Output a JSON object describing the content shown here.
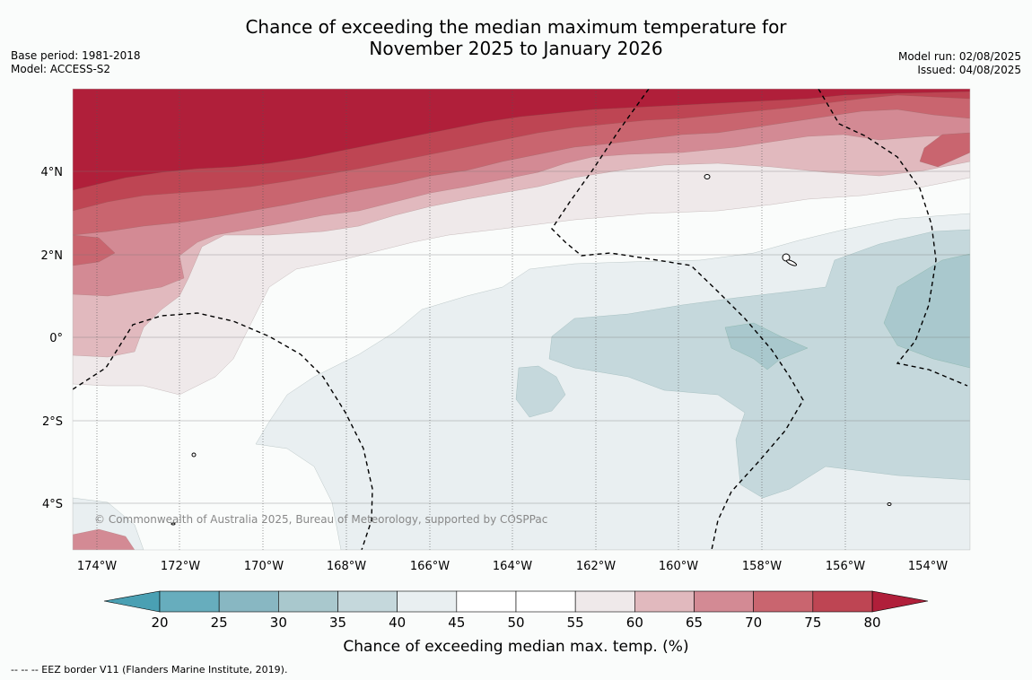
{
  "title": {
    "line1": "Chance of exceeding the median maximum temperature for",
    "line2": "November 2025 to January 2026"
  },
  "meta_left": {
    "base_period": "Base period: 1981-2018",
    "model": "Model: ACCESS-S2"
  },
  "meta_right": {
    "model_run": "Model run: 02/08/2025",
    "issued": "Issued: 04/08/2025"
  },
  "map": {
    "lat_labels": [
      "4°N",
      "2°N",
      "0°",
      "2°S",
      "4°S"
    ],
    "lon_labels": [
      "174°W",
      "172°W",
      "170°W",
      "168°W",
      "166°W",
      "164°W",
      "162°W",
      "160°W",
      "158°W",
      "156°W",
      "154°W"
    ],
    "copyright": "© Commonwealth of Australia 2025, Bureau of Meteorology, supported by COSPPac"
  },
  "colorbar": {
    "ticks": [
      "20",
      "25",
      "30",
      "35",
      "40",
      "45",
      "50",
      "55",
      "60",
      "65",
      "70",
      "75",
      "80"
    ],
    "colors": [
      "#67adbd",
      "#88b7c2",
      "#a9c8cd",
      "#c5d8dc",
      "#e9eff1",
      "#ffffff",
      "#ffffff",
      "#efe9ea",
      "#e1b9be",
      "#d38a94",
      "#c9656f",
      "#be4553"
    ],
    "low_color": "#4aa0b3",
    "high_color": "#b01f3a",
    "label": "Chance of exceeding median max. temp. (%)"
  },
  "footer": "--  --  -- EEZ border V11 (Flanders Marine Institute, 2019)."
}
